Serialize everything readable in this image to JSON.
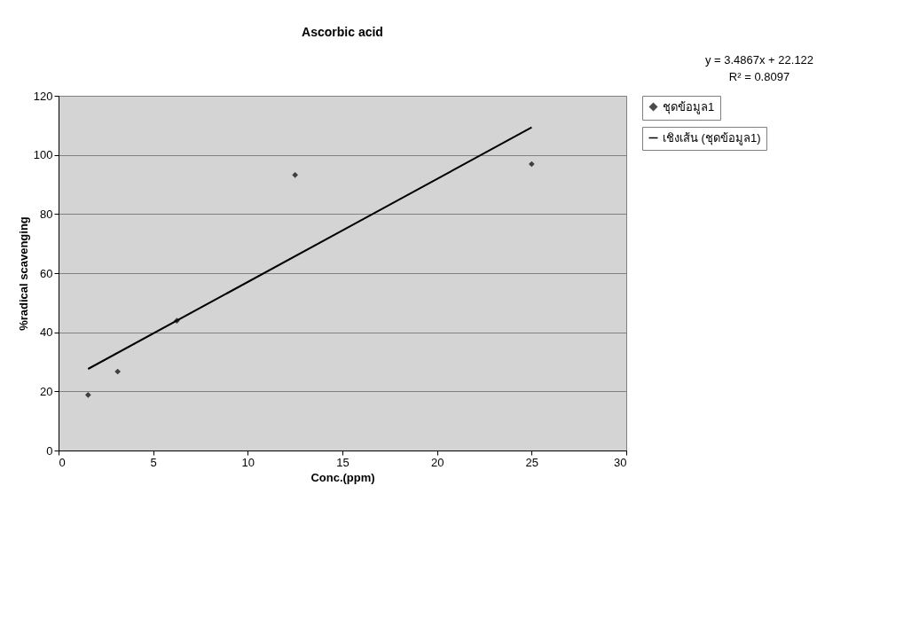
{
  "chart_data": {
    "type": "scatter",
    "title": "Ascorbic acid",
    "xlabel": "Conc.(ppm)",
    "ylabel": "%radical scavenging",
    "annotations": [
      "y = 3.4867x + 22.122",
      "R² = 0.8097"
    ],
    "x": [
      1.5625,
      3.125,
      6.25,
      12.5,
      25
    ],
    "series": [
      {
        "name": "ชุดข้อมูล1",
        "color": "#000000",
        "type": "scatter",
        "marker": "diamond",
        "values": [
          18.8,
          26.7,
          43.9,
          93.2,
          96.9
        ]
      },
      {
        "name": "เชิงเส้น (ชุดข้อมูล1)",
        "color": "#000000",
        "type": "line",
        "marker": "none",
        "line_style": "solid",
        "x": [
          1.5625,
          25
        ],
        "values": [
          27.6,
          109.3
        ]
      }
    ],
    "xlim": [
      0,
      30
    ],
    "xticks": [
      0,
      5,
      10,
      15,
      20,
      25,
      30
    ],
    "ylim": [
      0,
      120
    ],
    "yticks": [
      0,
      20,
      40,
      60,
      80,
      100,
      120
    ],
    "grid": "y",
    "legend": "right"
  }
}
